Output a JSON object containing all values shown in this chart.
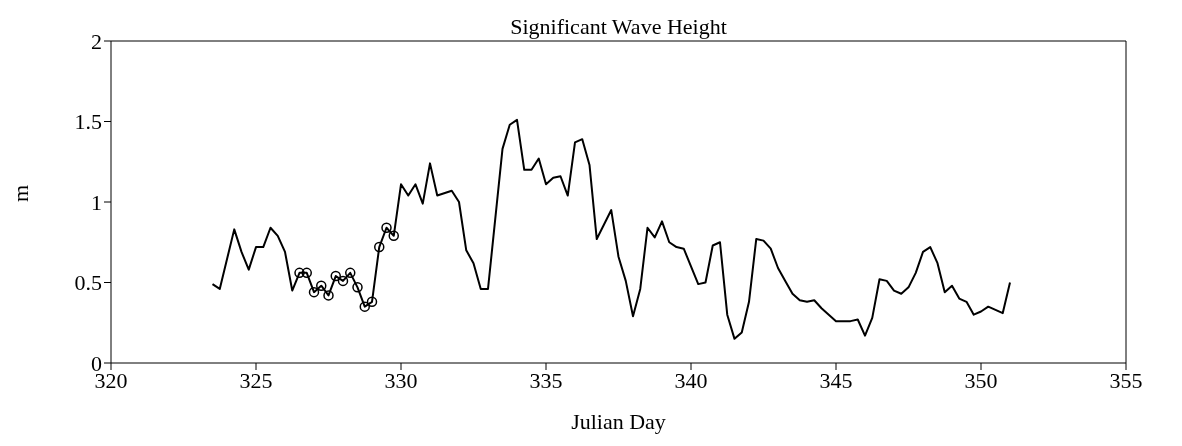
{
  "chart_data": {
    "type": "line",
    "title": "Significant Wave Height",
    "xlabel": "Julian Day",
    "ylabel": "m",
    "xlim": [
      320,
      355
    ],
    "xticks": [
      320,
      325,
      330,
      335,
      340,
      345,
      350,
      355
    ],
    "ylim": [
      0,
      2
    ],
    "yticks": [
      0,
      0.5,
      1,
      1.5,
      2
    ],
    "legend": false,
    "series": [
      {
        "color": "#000000",
        "marker": "none",
        "x": [
          323.5,
          323.75,
          324.25,
          324.5,
          324.75,
          325,
          325.25,
          325.5,
          325.75,
          326,
          326.25,
          326.5,
          326.75,
          327,
          327.25,
          327.5,
          327.75,
          328,
          328.25,
          328.5,
          328.75,
          329,
          329.25,
          329.5,
          329.75,
          330,
          330.25,
          330.5,
          330.75,
          331,
          331.25,
          331.75,
          332,
          332.25,
          332.5,
          332.75,
          333,
          333.5,
          333.75,
          334,
          334.25,
          334.5,
          334.75,
          335,
          335.25,
          335.5,
          335.75,
          336,
          336.25,
          336.5,
          336.75,
          337,
          337.25,
          337.5,
          337.75,
          338,
          338.25,
          338.5,
          338.75,
          339,
          339.25,
          339.5,
          339.75,
          340.25,
          340.5,
          340.75,
          341,
          341.25,
          341.5,
          341.75,
          342,
          342.25,
          342.5,
          342.75,
          343,
          343.25,
          343.5,
          343.75,
          344,
          344.25,
          344.5,
          344.75,
          345,
          345.25,
          345.5,
          345.75,
          346,
          346.25,
          346.5,
          346.75,
          347,
          347.25,
          347.5,
          347.75,
          348,
          348.25,
          348.5,
          348.75,
          349,
          349.25,
          349.5,
          349.75,
          350,
          350.25,
          350.5,
          350.75,
          351
        ],
        "values": [
          0.49,
          0.46,
          0.83,
          0.69,
          0.58,
          0.72,
          0.72,
          0.84,
          0.79,
          0.69,
          0.45,
          0.56,
          0.56,
          0.44,
          0.48,
          0.42,
          0.54,
          0.51,
          0.56,
          0.47,
          0.35,
          0.38,
          0.72,
          0.84,
          0.79,
          1.11,
          1.04,
          1.11,
          0.99,
          1.24,
          1.04,
          1.07,
          1.0,
          0.7,
          0.62,
          0.46,
          0.46,
          1.33,
          1.48,
          1.51,
          1.2,
          1.2,
          1.27,
          1.11,
          1.15,
          1.16,
          1.04,
          1.37,
          1.39,
          1.23,
          0.77,
          0.86,
          0.95,
          0.66,
          0.51,
          0.29,
          0.46,
          0.84,
          0.78,
          0.88,
          0.75,
          0.72,
          0.71,
          0.49,
          0.5,
          0.73,
          0.75,
          0.3,
          0.15,
          0.19,
          0.38,
          0.77,
          0.76,
          0.71,
          0.59,
          0.51,
          0.43,
          0.39,
          0.38,
          0.39,
          0.34,
          0.3,
          0.26,
          0.26,
          0.26,
          0.27,
          0.17,
          0.28,
          0.52,
          0.51,
          0.45,
          0.43,
          0.47,
          0.56,
          0.69,
          0.72,
          0.62,
          0.44,
          0.48,
          0.4,
          0.38,
          0.3,
          0.32,
          0.35,
          0.33,
          0.31,
          0.5
        ]
      },
      {
        "type": "scatter",
        "color": "#000000",
        "marker": "circle",
        "x": [
          326.5,
          326.75,
          327,
          327.25,
          327.5,
          327.75,
          328,
          328.25,
          328.5,
          328.75,
          329,
          329.25,
          329.5,
          329.75
        ],
        "values": [
          0.56,
          0.56,
          0.44,
          0.48,
          0.42,
          0.54,
          0.51,
          0.56,
          0.47,
          0.35,
          0.38,
          0.72,
          0.84,
          0.79
        ]
      }
    ]
  }
}
